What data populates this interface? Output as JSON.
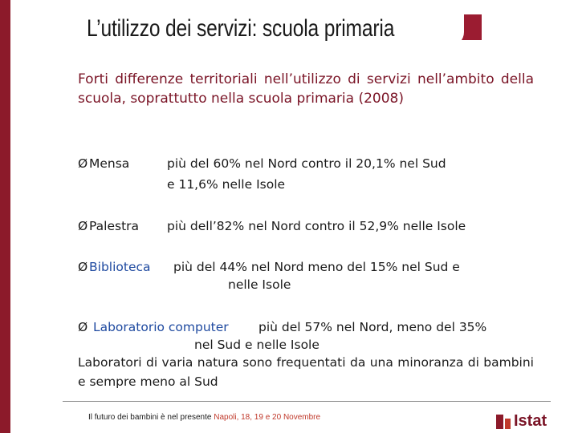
{
  "slide": {
    "title": "L’utilizzo dei servizi: scuola primaria",
    "lead": "Forti differenze territoriali nell’utilizzo di servizi nell’ambito della scuola, soprattutto nella scuola primaria (2008)"
  },
  "items": [
    {
      "bullet": "Ø",
      "label": "Mensa",
      "line1": "più del 60% nel Nord contro il 20,1% nel Sud",
      "line2": "e 11,6%  nelle Isole"
    },
    {
      "bullet": "Ø",
      "label": "Palestra",
      "line1": "più dell’82% nel Nord contro il 52,9% nelle Isole"
    },
    {
      "bullet": "Ø",
      "label": "Biblioteca",
      "line1": "più del 44% nel Nord meno del 15% nel Sud e",
      "line2": "nelle Isole"
    },
    {
      "bullet": "Ø",
      "label": "Laboratorio computer",
      "line1": "più del 57% nel Nord, meno del 35%",
      "line2": "nel  Sud e nelle Isole"
    }
  ],
  "closing": "Laboratori di varia natura sono frequentati da una minoranza di bambini e sempre meno al Sud",
  "footer": {
    "text": "Il futuro dei bambini è nel presente",
    "event": "Napoli, 18, 19  e 20 Novembre",
    "logo": "Istat"
  },
  "colors": {
    "brand": "#9b1c31",
    "lead": "#7a1426",
    "link_blue": "#1f4aa0"
  }
}
